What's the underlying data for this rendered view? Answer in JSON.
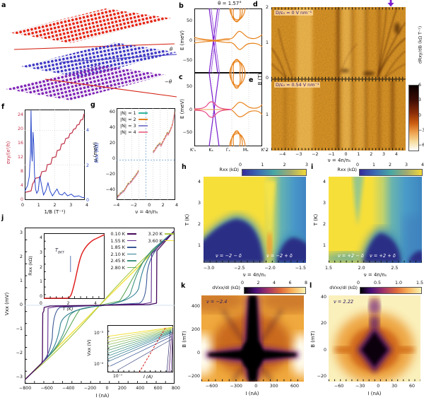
{
  "panel_letters": {
    "a": "a",
    "b": "b",
    "c": "c",
    "d": "d",
    "e": "e",
    "f": "f",
    "g": "g",
    "h": "h",
    "i": "i",
    "j": "j",
    "k": "k",
    "l": "l"
  },
  "panels": {
    "a": {
      "theta": "θ",
      "minus_theta": "−θ",
      "layer_colors": {
        "top": "#e42313",
        "middle": "#3d36c4",
        "bottom": "#7e22b5"
      }
    },
    "b": {
      "title": "θ = 1.57°",
      "ylabel": "E (meV)",
      "yticks": [
        "50",
        "0",
        "−50"
      ],
      "xticks": [
        "K'ₛ",
        "Kₛ",
        "Γₛ",
        "Mₛ",
        "K'ₛ"
      ]
    },
    "c": {
      "ylabel": "E (meV)",
      "yticks": [
        "50",
        "0",
        "−50"
      ]
    },
    "d": {
      "annotation": "D/ε₀ = 0 V nm⁻¹",
      "yticks": [
        "2",
        "1",
        "0"
      ],
      "arrow_color": "#7a1fd0"
    },
    "e": {
      "annotation": "D/ε₀ = 0.54 V nm⁻¹",
      "yticks": [
        "1",
        "2"
      ],
      "ylabel": "B (T)",
      "xticks": [
        "−4",
        "−3",
        "−2",
        "−1",
        "0",
        "1",
        "2",
        "3",
        "4"
      ],
      "xlabel": "ν = 4n/nₛ",
      "colorbar": {
        "label": "dRxy/dB (kΩ T⁻¹)",
        "ticks": [
          "6",
          "3",
          "0",
          "−3",
          "−6"
        ]
      }
    },
    "f": {
      "ylabel_left": "σxy/(e²/h)",
      "yticks_left": [
        "24",
        "20",
        "16",
        "12",
        "8",
        "4",
        "0"
      ],
      "ylabel_right": "Rxx (kΩ)",
      "yticks_right": [
        "4",
        "2",
        "0"
      ],
      "xlabel": "1/B (T⁻¹)",
      "xticks": [
        "0",
        "1",
        "2",
        "3",
        "4"
      ]
    },
    "g": {
      "ylabel": "μ (meV)",
      "yticks": [
        "60",
        "40",
        "20",
        "0",
        "−20",
        "−40"
      ],
      "xlabel": "ν = 4n/nₛ",
      "xticks": [
        "−4",
        "−2",
        "0",
        "2",
        "4"
      ],
      "legend": [
        {
          "label": "|N| = 1",
          "color": "#2fb39b"
        },
        {
          "label": "|N| = 2",
          "color": "#e5801f"
        },
        {
          "label": "|N| = 3",
          "color": "#8886cf"
        },
        {
          "label": "|N| = 4",
          "color": "#ec7e96"
        }
      ]
    },
    "h": {
      "colorbar_label": "Rxx (kΩ)",
      "colorbar_ticks": [
        "0",
        "1",
        "2",
        "3"
      ],
      "ylabel": "T (K)",
      "yticks": [
        "4",
        "3",
        "2",
        "1"
      ],
      "xlabel": "ν = 4n/nₛ",
      "xticks": [
        "−3.0",
        "−2.5",
        "−2.0",
        "−1.5"
      ],
      "region_left": "ν = −2 − δ",
      "region_right": "ν = −2 + δ"
    },
    "i": {
      "colorbar_label": "Rxx (kΩ)",
      "colorbar_ticks": [
        "0",
        "1",
        "2",
        "3",
        "4"
      ],
      "ylabel": "T (K)",
      "yticks": [
        "4",
        "3",
        "2",
        "1"
      ],
      "xlabel": "ν = 4n/nₛ",
      "xticks": [
        "1.5",
        "2.0",
        "2.5",
        "3.0"
      ],
      "region_left": "ν = +2 − δ",
      "region_right": "ν = +2 + δ"
    },
    "j": {
      "ylabel": "Vxx (mV)",
      "yticks": [
        "3",
        "2",
        "1",
        "0",
        "−1",
        "−2",
        "−3"
      ],
      "xlabel": "I (nA)",
      "xticks": [
        "−800",
        "−600",
        "−400",
        "−200",
        "0",
        "200",
        "400",
        "600",
        "800"
      ],
      "legend_col1": [
        {
          "label": "0.10 K",
          "color": "#46085c"
        },
        {
          "label": "1.55 K",
          "color": "#5f2b8e"
        },
        {
          "label": "1.85 K",
          "color": "#3a5795"
        },
        {
          "label": "2.10 K",
          "color": "#2e7f92"
        },
        {
          "label": "2.45 K",
          "color": "#3f9480"
        },
        {
          "label": "2.80 K",
          "color": "#62aa5e"
        }
      ],
      "legend_col2": [
        {
          "label": "3.20 K",
          "color": "#a9c845"
        },
        {
          "label": "3.60 K",
          "color": "#f3e13a"
        }
      ],
      "inset_rt": {
        "ylabel": "Rxx (kΩ)",
        "yticks": [
          "4",
          "3",
          "2",
          "1",
          "0"
        ],
        "xlabel": "T (K)",
        "xticks": [
          "0",
          "2",
          "4"
        ],
        "bkt_main": "T",
        "bkt_sub": "BKT"
      },
      "inset_vi": {
        "ylabel": "Vxx (V)",
        "ytick_top": "10⁻³",
        "ytick_bottom": "10⁻⁴",
        "xtick": "10⁻⁷",
        "xlabel": "I (A)"
      }
    },
    "k": {
      "colorbar_label": "dVxx/dI (kΩ)",
      "colorbar_ticks": [
        "0",
        "2",
        "4",
        "6",
        "8"
      ],
      "ylabel": "B (mT)",
      "yticks": [
        "400",
        "200",
        "0",
        "−200"
      ],
      "xlabel": "I (nA)",
      "xticks": [
        "−600",
        "−300",
        "0",
        "300",
        "600"
      ],
      "annotation": "ν = −2.4"
    },
    "l": {
      "colorbar_label": "dVxx/dI (kΩ)",
      "colorbar_ticks": [
        "0",
        "0.5",
        "1.0",
        "1.5"
      ],
      "ylabel": "B (mT)",
      "yticks": [
        "40",
        "20",
        "0",
        "−20"
      ],
      "xlabel": "I (nA)",
      "xticks": [
        "−60",
        "−30",
        "0",
        "30",
        "60"
      ],
      "annotation": "ν = 2.22"
    }
  },
  "chart_data": [
    {
      "panel": "a",
      "type": "diagram",
      "description": "Three stacked graphene lattices twisted by θ (top, red), 0 (middle, blue) and −θ (bottom, purple)",
      "labels": [
        "θ",
        "−θ"
      ]
    },
    {
      "panel": "b",
      "type": "line",
      "title": "θ = 1.57°",
      "ylabel": "E (meV)",
      "ylim": [
        -80,
        80
      ],
      "xticklabels": [
        "K'ₛ",
        "Kₛ",
        "Γₛ",
        "Mₛ",
        "K'ₛ"
      ],
      "description": "Band structure: steep Dirac cone (purple) crossing at Kₛ, flat bands (orange) near E=0 peaking ±20 meV near Γₛ, dispersive bands (orange) beyond ±55 meV near Γₛ"
    },
    {
      "panel": "c",
      "type": "line",
      "ylabel": "E (meV)",
      "ylim": [
        -80,
        80
      ],
      "description": "Band structure with displacement field: Dirac cone (purple) plus hybridized bands (pink) reaching ±25 meV at Kₛ, flat bands and high-energy bands (orange)"
    },
    {
      "panel": "d",
      "type": "heatmap",
      "condition": "D/ε₀ = 0 V nm⁻¹",
      "xlabel": "ν = 4n/nₛ",
      "ylabel": "B (T)",
      "xlim": [
        -5,
        5
      ],
      "ylim": [
        0,
        2
      ],
      "value_label": "dRxy/dB (kΩ T⁻¹)",
      "value_range": [
        -6,
        6
      ],
      "features": "Landau fan; dark vertical streaks at ν = 0, 1, 2, 3; fan of Landau levels emanating near ν ≈ 3 toward high B; purple arrow marks ν ≈ 3.9"
    },
    {
      "panel": "e",
      "type": "heatmap",
      "condition": "D/ε₀ = 0.54 V nm⁻¹",
      "xlabel": "ν = 4n/nₛ",
      "ylabel": "B (T)",
      "xlim": [
        -5,
        5
      ],
      "ylim": [
        0,
        2
      ],
      "value_label": "dRxy/dB (kΩ T⁻¹)",
      "value_range": [
        -6,
        6
      ],
      "features": "Landau fan with vertical streaks at integer ν"
    },
    {
      "panel": "f",
      "type": "line",
      "xlabel": "1/B (T⁻¹)",
      "xlim": [
        0,
        4
      ],
      "series": [
        {
          "name": "σxy/(e²/h)",
          "axis": "left",
          "ylim": [
            0,
            26
          ],
          "color": "#c13148",
          "x": [
            0.05,
            0.45,
            0.55,
            0.62,
            0.8,
            1.0,
            1.1,
            1.3,
            1.5,
            1.7,
            1.9,
            2.1,
            2.3,
            2.5,
            2.7,
            2.9,
            3.1,
            3.3,
            3.5,
            3.7,
            3.9,
            4.0
          ],
          "y": [
            2,
            2.3,
            4,
            6,
            6.2,
            6.4,
            8,
            10,
            12,
            12.5,
            14,
            16,
            16.5,
            17.5,
            19,
            19.5,
            21,
            21.5,
            22.5,
            23,
            24,
            24.5
          ]
        },
        {
          "name": "Rxx (kΩ)",
          "axis": "right",
          "ylim": [
            0,
            5
          ],
          "color": "#2746c9",
          "x": [
            0,
            0.2,
            0.3,
            0.38,
            0.42,
            0.46,
            0.5,
            0.55,
            0.6,
            0.65,
            0.72,
            0.8,
            0.9,
            1.0,
            1.1,
            1.25,
            1.4,
            1.55,
            1.7,
            1.85,
            2.0,
            2.15,
            2.3,
            2.5,
            2.65,
            2.85,
            3.1,
            3.3,
            3.6,
            3.85,
            4.0
          ],
          "y": [
            0.45,
            0.8,
            1.3,
            2.6,
            5.15,
            2.8,
            2.2,
            3.9,
            3.2,
            1.5,
            0.6,
            0.35,
            0.5,
            1.35,
            0.9,
            0.25,
            0.5,
            0.95,
            0.45,
            0.2,
            0.4,
            0.6,
            0.3,
            0.25,
            0.4,
            0.2,
            0.3,
            0.15,
            0.2,
            0.1,
            0.12
          ]
        }
      ]
    },
    {
      "panel": "g",
      "type": "line",
      "xlabel": "ν = 4n/nₛ",
      "ylabel": "μ (meV)",
      "xlim": [
        -4.3,
        4.3
      ],
      "ylim": [
        -50,
        65
      ],
      "series_note": "Four overlapping series |N| = 1–4 (Landau level index), nearly identical",
      "x_hole": [
        -4,
        -3.6,
        -3.2,
        -3.0,
        -2.7,
        -2.5,
        -2.2,
        -2.0,
        -1.8,
        -1.5,
        -1.2,
        -1.0
      ],
      "mu_hole": [
        -46,
        -42,
        -39,
        -37.5,
        -33,
        -30,
        -28,
        -26,
        -23.5,
        -20,
        -16,
        -13
      ],
      "x_electron": [
        1.0,
        1.3,
        1.6,
        1.9,
        2.0,
        2.1,
        2.4,
        2.7,
        3.0,
        3.1,
        3.4,
        3.7,
        3.85,
        4.0
      ],
      "mu_electron": [
        10,
        14,
        18,
        20.5,
        21,
        18.5,
        24,
        29,
        34.5,
        32.5,
        38,
        45,
        52,
        60
      ]
    },
    {
      "panel": "h",
      "type": "heatmap",
      "xlabel": "ν = 4n/nₛ",
      "ylabel": "T (K)",
      "xlim": [
        -3.1,
        -1.45
      ],
      "ylim": [
        0.4,
        4.35
      ],
      "value_label": "Rxx (kΩ)",
      "value_range": [
        0,
        3.5
      ],
      "features": "Superconducting (dark, R≈0) domes: ν = −2 − δ dome up to T ≈ 2.3 K, ν = −2 + δ dome up to T ≈ 1.3 K, separated by high-R yellow wedge at ν = −2"
    },
    {
      "panel": "i",
      "type": "heatmap",
      "xlabel": "ν = 4n/nₛ",
      "ylabel": "T (K)",
      "xlim": [
        1.45,
        3.05
      ],
      "ylim": [
        0.4,
        4.35
      ],
      "value_label": "Rxx (kΩ)",
      "value_range": [
        0,
        4
      ],
      "features": "Superconducting domes: ν = +2 + δ dome up to T ≈ 1.6 K; high-R yellow region for ν < 2"
    },
    {
      "panel": "j",
      "type": "line",
      "xlabel": "I (nA)",
      "ylabel": "Vxx (mV)",
      "xlim": [
        -800,
        800
      ],
      "ylim": [
        -3.2,
        3.2
      ],
      "normal_slope_uV_per_nA": 3.9,
      "series": [
        {
          "name": "0.10 K",
          "Ic_nA": 610
        },
        {
          "name": "1.55 K",
          "Ic_nA": 555
        },
        {
          "name": "1.85 K",
          "Ic_nA": 500
        },
        {
          "name": "2.10 K",
          "Ic_nA": 415
        },
        {
          "name": "2.45 K",
          "Ic_nA": 320
        },
        {
          "name": "2.80 K",
          "Ic_nA": 215
        },
        {
          "name": "3.20 K",
          "Ic_nA": 110
        },
        {
          "name": "3.60 K",
          "Ic_nA": 0
        }
      ]
    },
    {
      "panel": "j-inset-RT",
      "type": "line",
      "xlabel": "T (K)",
      "ylabel": "Rxx (kΩ)",
      "xlim": [
        0,
        5
      ],
      "ylim": [
        0,
        4.4
      ],
      "T_BKT_K": 2.2,
      "x": [
        0,
        1.0,
        2.0,
        2.2,
        2.5,
        2.8,
        3.2,
        3.8,
        4.5,
        5.0
      ],
      "y": [
        0.05,
        0.05,
        0.07,
        0.15,
        1.0,
        2.2,
        3.1,
        3.7,
        4.0,
        4.2
      ]
    },
    {
      "panel": "j-inset-VI",
      "type": "line",
      "scale": "log-log",
      "xlabel": "I (A)",
      "ylabel": "Vxx (V)",
      "yticks": [
        "10⁻³",
        "10⁻⁴"
      ],
      "xtick": "10⁻⁷",
      "description": "V–I on log scale for all temperatures; red dashed line marks V ∝ I³ power law"
    },
    {
      "panel": "k",
      "type": "heatmap",
      "condition": "ν = −2.4",
      "xlabel": "I (nA)",
      "ylabel": "B (mT)",
      "xlim": [
        -750,
        750
      ],
      "ylim": [
        -200,
        490
      ],
      "value_label": "dVxx/dI (kΩ)",
      "value_range": [
        0,
        8
      ],
      "features": "Zero-differential-resistance (black) cross centred at I = 0, B = 0; critical current ≈ ±600 nA at B = 0"
    },
    {
      "panel": "l",
      "type": "heatmap",
      "condition": "ν = 2.22",
      "xlabel": "I (nA)",
      "ylabel": "B (mT)",
      "xlim": [
        -80,
        80
      ],
      "ylim": [
        -25,
        42
      ],
      "value_label": "dVxx/dI (kΩ)",
      "value_range": [
        0,
        1.5
      ],
      "features": "Dark low-resistance diamond centred at I = 0, B = 0; critical current ≈ ±40 nA"
    }
  ]
}
